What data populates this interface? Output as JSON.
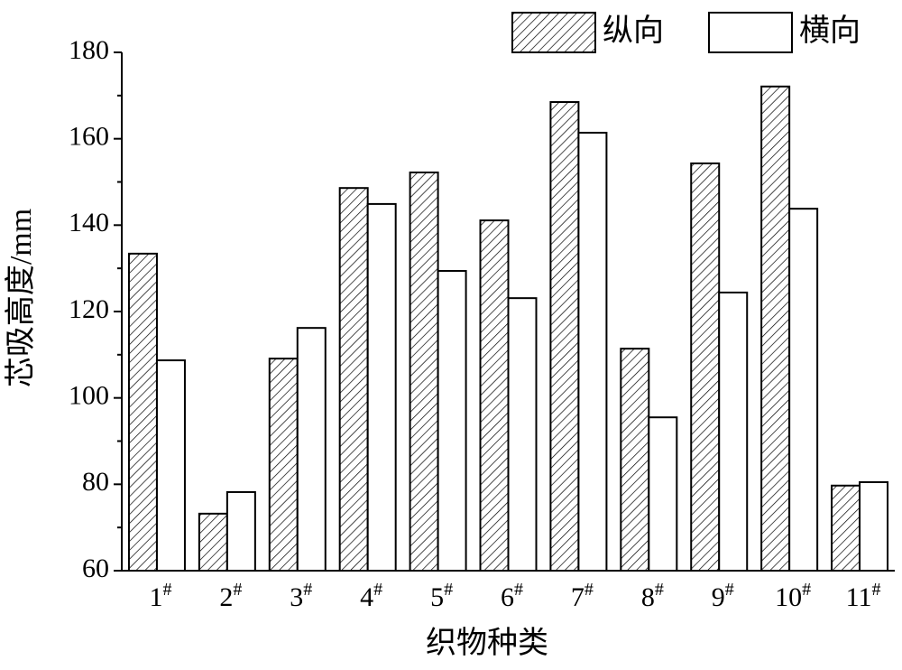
{
  "chart_data": {
    "type": "bar",
    "x_label": "织物种类",
    "y_label": "芯吸高度/mm",
    "categories": [
      "1#",
      "2#",
      "3#",
      "4#",
      "5#",
      "6#",
      "7#",
      "8#",
      "9#",
      "10#",
      "11#"
    ],
    "series": [
      {
        "name": "纵向",
        "color": "#ffffff",
        "hatch": true,
        "values": [
          133.4,
          73.2,
          109.1,
          148.6,
          152.2,
          141.1,
          168.5,
          111.4,
          154.3,
          172.1,
          79.7
        ]
      },
      {
        "name": "横向",
        "color": "#ffffff",
        "hatch": false,
        "values": [
          108.7,
          78.2,
          116.2,
          144.9,
          129.4,
          123.1,
          161.4,
          95.5,
          124.4,
          143.8,
          80.5
        ]
      }
    ],
    "ylim": [
      60,
      180
    ],
    "yticks": [
      60,
      80,
      100,
      120,
      140,
      160,
      180
    ],
    "grid": false,
    "legend": "top-right"
  }
}
